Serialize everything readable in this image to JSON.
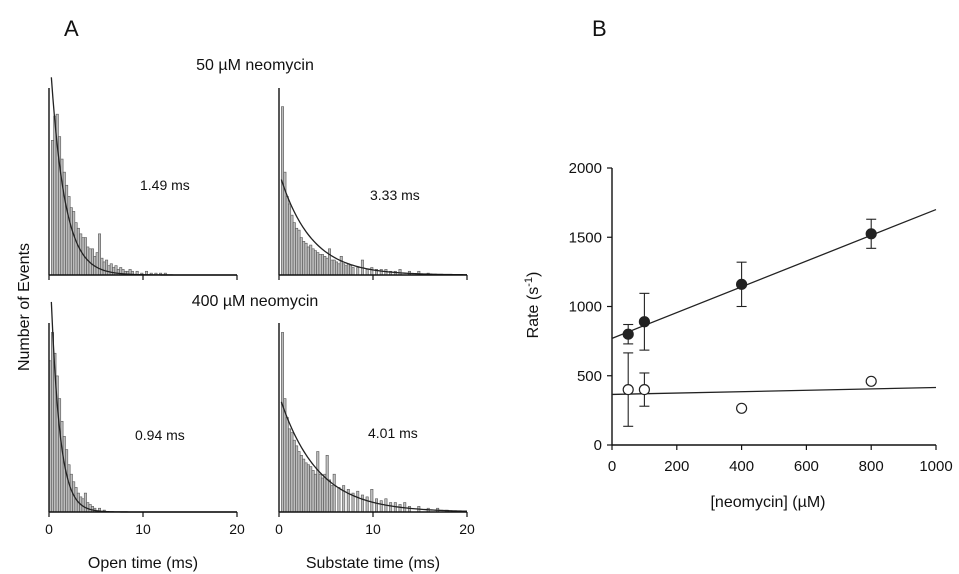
{
  "panel_labels": {
    "a": "A",
    "b": "B"
  },
  "panel_a": {
    "ylabel": "Number of Events",
    "row_titles": [
      "50 µM neomycin",
      "400 µM neomycin"
    ],
    "xlabels": [
      "Open time (ms)",
      "Substate time (ms)"
    ],
    "tick_labels": [
      "0",
      "10",
      "20"
    ],
    "time_constants": [
      "1.49 ms",
      "3.33 ms",
      "0.94 ms",
      "4.01 ms"
    ]
  },
  "panel_b": {
    "ylabel_base": "Rate (s",
    "ylabel_sup": "-1",
    "ylabel_end": ")",
    "xlabel": "[neomycin] (µM)",
    "xticks": [
      "0",
      "200",
      "400",
      "600",
      "800",
      "1000"
    ],
    "yticks": [
      "0",
      "500",
      "1000",
      "1500",
      "2000"
    ]
  },
  "chart_data": [
    {
      "type": "bar",
      "title": "50 µM neomycin",
      "xlabel": "Open time (ms)",
      "ylabel": "Number of Events",
      "xlim": [
        0,
        20
      ],
      "annotation": "1.49 ms",
      "bin_width": 0.25,
      "x": [
        0.5,
        0.75,
        1.0,
        1.25,
        1.5,
        1.75,
        2.0,
        2.25,
        2.5,
        2.75,
        3.0,
        3.25,
        3.5,
        3.75,
        4.0,
        4.25,
        4.5,
        4.75,
        5.0,
        5.25,
        5.5,
        5.75,
        6.0,
        6.25,
        6.5,
        6.75,
        7.0,
        7.25,
        7.5,
        7.75,
        8.0,
        8.25,
        8.5,
        8.75,
        9.0,
        9.5,
        10.0,
        10.5,
        11.0,
        11.5,
        12.0,
        12.5
      ],
      "values": [
        0.72,
        0.85,
        0.86,
        0.74,
        0.62,
        0.55,
        0.48,
        0.42,
        0.36,
        0.34,
        0.28,
        0.25,
        0.22,
        0.2,
        0.2,
        0.15,
        0.14,
        0.14,
        0.1,
        0.12,
        0.22,
        0.09,
        0.07,
        0.08,
        0.05,
        0.06,
        0.04,
        0.05,
        0.03,
        0.04,
        0.03,
        0.02,
        0.02,
        0.03,
        0.02,
        0.02,
        0.01,
        0.02,
        0.01,
        0.01,
        0.01,
        0.01
      ],
      "fit": {
        "tau_ms": 1.49,
        "y0": 1.25
      }
    },
    {
      "type": "bar",
      "title": "50 µM neomycin",
      "xlabel": "Substate time (ms)",
      "ylabel": "Number of Events",
      "xlim": [
        0,
        20
      ],
      "annotation": "3.33 ms",
      "bin_width": 0.25,
      "x": [
        0.5,
        0.75,
        1.0,
        1.25,
        1.5,
        1.75,
        2.0,
        2.25,
        2.5,
        2.75,
        3.0,
        3.25,
        3.5,
        3.75,
        4.0,
        4.25,
        4.5,
        4.75,
        5.0,
        5.25,
        5.5,
        5.75,
        6.0,
        6.25,
        6.5,
        6.75,
        7.0,
        7.25,
        7.5,
        7.75,
        8.0,
        8.5,
        9.0,
        9.5,
        10.0,
        10.5,
        11.0,
        11.5,
        12.0,
        12.5,
        13.0,
        14.0,
        15.0,
        16.0
      ],
      "values": [
        0.9,
        0.55,
        0.42,
        0.38,
        0.32,
        0.28,
        0.25,
        0.24,
        0.2,
        0.18,
        0.17,
        0.15,
        0.16,
        0.14,
        0.13,
        0.12,
        0.11,
        0.11,
        0.1,
        0.09,
        0.14,
        0.08,
        0.08,
        0.07,
        0.06,
        0.1,
        0.06,
        0.05,
        0.06,
        0.05,
        0.04,
        0.04,
        0.08,
        0.03,
        0.04,
        0.03,
        0.03,
        0.03,
        0.02,
        0.02,
        0.03,
        0.02,
        0.02,
        0.01
      ],
      "fit": {
        "tau_ms": 3.33,
        "y0": 0.55
      }
    },
    {
      "type": "bar",
      "title": "400 µM neomycin",
      "xlabel": "Open time (ms)",
      "ylabel": "Number of Events",
      "xlim": [
        0,
        20
      ],
      "annotation": "0.94 ms",
      "bin_width": 0.25,
      "x": [
        0.25,
        0.5,
        0.75,
        1.0,
        1.25,
        1.5,
        1.75,
        2.0,
        2.25,
        2.5,
        2.75,
        3.0,
        3.25,
        3.5,
        3.75,
        4.0,
        4.25,
        4.5,
        4.75,
        5.0,
        5.5,
        6.0
      ],
      "values": [
        0.8,
        0.95,
        0.84,
        0.72,
        0.6,
        0.48,
        0.4,
        0.33,
        0.25,
        0.2,
        0.16,
        0.13,
        0.1,
        0.08,
        0.07,
        0.1,
        0.05,
        0.04,
        0.03,
        0.02,
        0.02,
        0.01
      ],
      "fit": {
        "tau_ms": 0.94,
        "y0": 1.45
      }
    },
    {
      "type": "bar",
      "title": "400 µM neomycin",
      "xlabel": "Substate time (ms)",
      "ylabel": "Number of Events",
      "xlim": [
        0,
        20
      ],
      "annotation": "4.01 ms",
      "bin_width": 0.25,
      "x": [
        0.5,
        0.75,
        1.0,
        1.25,
        1.5,
        1.75,
        2.0,
        2.25,
        2.5,
        2.75,
        3.0,
        3.25,
        3.5,
        3.75,
        4.0,
        4.25,
        4.5,
        4.75,
        5.0,
        5.25,
        5.5,
        5.75,
        6.0,
        6.5,
        7.0,
        7.5,
        8.0,
        8.5,
        9.0,
        9.5,
        10.0,
        10.5,
        11.0,
        11.5,
        12.0,
        12.5,
        13.0,
        13.5,
        14.0,
        15.0,
        16.0,
        17.0,
        18.0
      ],
      "values": [
        0.95,
        0.6,
        0.5,
        0.44,
        0.42,
        0.38,
        0.35,
        0.32,
        0.3,
        0.28,
        0.26,
        0.25,
        0.24,
        0.22,
        0.2,
        0.32,
        0.2,
        0.18,
        0.2,
        0.3,
        0.17,
        0.14,
        0.2,
        0.13,
        0.14,
        0.12,
        0.1,
        0.11,
        0.09,
        0.08,
        0.12,
        0.07,
        0.06,
        0.07,
        0.05,
        0.05,
        0.04,
        0.05,
        0.03,
        0.03,
        0.02,
        0.02,
        0.01
      ],
      "fit": {
        "tau_ms": 4.01,
        "y0": 0.62
      }
    },
    {
      "type": "scatter",
      "xlabel": "[neomycin] (µM)",
      "ylabel": "Rate (s-1)",
      "xlim": [
        0,
        1000
      ],
      "ylim": [
        0,
        2000
      ],
      "grid": false,
      "series": [
        {
          "marker": "filled",
          "x": [
            50,
            100,
            400,
            800
          ],
          "y": [
            800,
            890,
            1160,
            1525
          ],
          "err": [
            70,
            205,
            160,
            105
          ],
          "fit": {
            "slope": 0.93,
            "intercept": 770
          }
        },
        {
          "marker": "open",
          "x": [
            50,
            100,
            400,
            800
          ],
          "y": [
            400,
            400,
            265,
            460
          ],
          "err": [
            265,
            120,
            0,
            0
          ],
          "fit": {
            "slope": 0.05,
            "intercept": 365
          }
        }
      ]
    }
  ]
}
